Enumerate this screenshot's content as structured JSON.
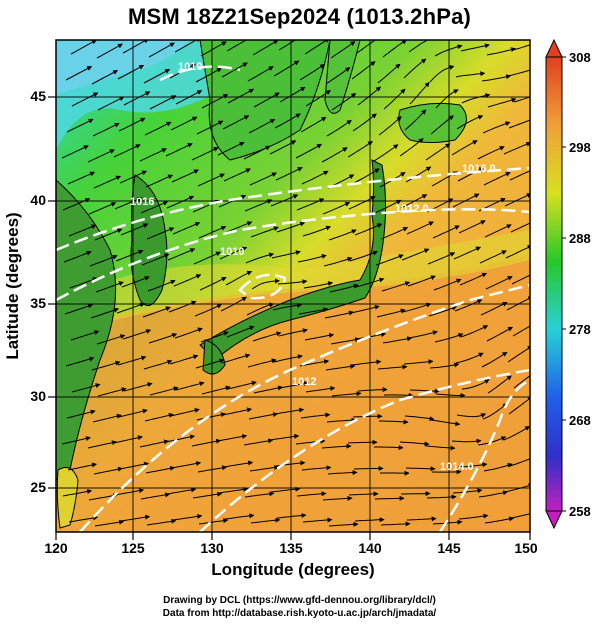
{
  "title": "MSM 18Z21Sep2024 (1013.2hPa)",
  "map": {
    "lon_range": [
      120,
      150
    ],
    "lat_range": [
      22.4,
      47.6
    ],
    "x_label": "Longitude (degrees)",
    "y_label": "Latitude  (degrees)",
    "x_ticks": [
      "120",
      "125",
      "130",
      "135",
      "140",
      "145",
      "150"
    ],
    "y_ticks": [
      "25",
      "30",
      "35",
      "40",
      "45"
    ],
    "isobar_labels": [
      "1010",
      "1010",
      "1012",
      "1012.0",
      "1014.0",
      "1016.0",
      "1016"
    ]
  },
  "colorbar": {
    "ticks": [
      "258",
      "268",
      "278",
      "288",
      "298",
      "308"
    ],
    "range": [
      258,
      308
    ]
  },
  "credits": {
    "line1": "Drawing by DCL (https://www.gfd-dennou.org/library/dcl/)",
    "line2": "Data from http://database.rish.kyoto-u.ac.jp/arch/jmadata/"
  },
  "colors": {
    "warm": "#f0a03a",
    "mid": "#d8dc2a",
    "green": "#3cc83c",
    "cool": "#2ad0c8",
    "land": "#3a8a2a",
    "isobar": "#ffffff"
  }
}
